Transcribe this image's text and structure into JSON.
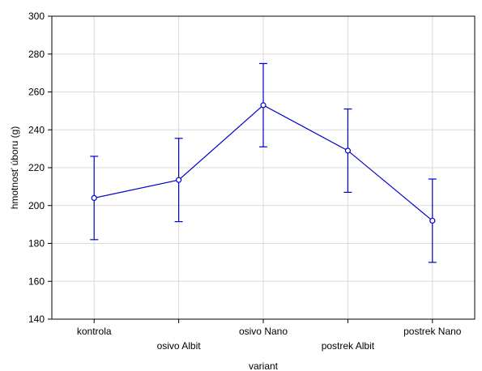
{
  "chart_data": {
    "type": "line",
    "xlabel": "variant",
    "ylabel": "hmotnosť úboru (g)",
    "categories": [
      "kontrola",
      "osivo Albit",
      "osivo Nano",
      "postrek Albit",
      "postrek Nano"
    ],
    "series": [
      {
        "values": [
          204,
          213.5,
          253,
          229,
          192
        ],
        "err_low": [
          182,
          191.5,
          231,
          207,
          170
        ],
        "err_high": [
          226,
          235.5,
          275,
          251,
          214
        ],
        "color": "#0000cc"
      }
    ],
    "ylim": [
      140,
      300
    ],
    "yticks": [
      140,
      160,
      180,
      200,
      220,
      240,
      260,
      280,
      300
    ],
    "grid": true,
    "grid_color": "#d9d9d9",
    "markers": "open-circle",
    "error_bars": true
  }
}
